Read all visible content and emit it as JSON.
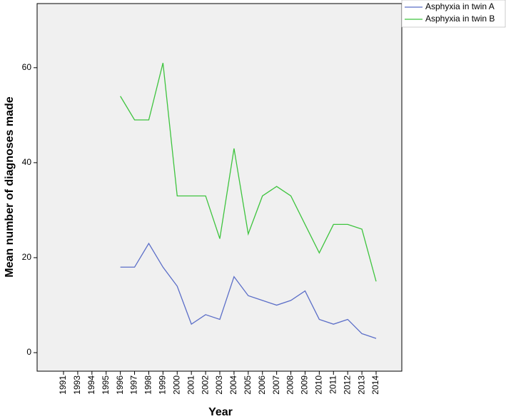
{
  "chart_data": {
    "type": "line",
    "xlabel": "Year",
    "ylabel": "Mean number of diagnoses made",
    "categories": [
      "1991",
      "1993",
      "1994",
      "1995",
      "1996",
      "1997",
      "1998",
      "1999",
      "2000",
      "2001",
      "2002",
      "2003",
      "2004",
      "2005",
      "2006",
      "2007",
      "2008",
      "2009",
      "2010",
      "2011",
      "2012",
      "2013",
      "2014"
    ],
    "series": [
      {
        "name": "Asphyxia in twin A",
        "color": "#5b6ec8",
        "values": [
          null,
          null,
          null,
          null,
          18,
          18,
          23,
          18,
          14,
          6,
          8,
          7,
          16,
          12,
          11,
          10,
          11,
          13,
          7,
          6,
          7,
          4,
          3
        ]
      },
      {
        "name": "Asphyxia in twin B",
        "color": "#3ec43e",
        "values": [
          null,
          null,
          null,
          null,
          54,
          49,
          49,
          61,
          33,
          33,
          33,
          24,
          43,
          25,
          33,
          35,
          33,
          27,
          21,
          27,
          27,
          26,
          15
        ]
      }
    ],
    "ylim": [
      -3.9,
      73.5
    ],
    "yticks": [
      0,
      20,
      40,
      60
    ],
    "legend": "right"
  }
}
